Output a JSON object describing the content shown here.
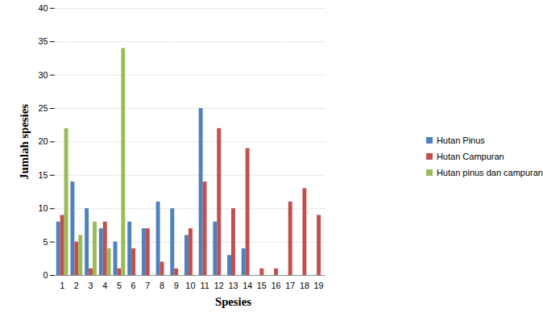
{
  "chart_data": {
    "type": "bar",
    "xlabel": "Spesies",
    "ylabel": "Jumlah spesies",
    "categories": [
      "1",
      "2",
      "3",
      "4",
      "5",
      "6",
      "7",
      "8",
      "9",
      "10",
      "11",
      "12",
      "13",
      "14",
      "15",
      "16",
      "17",
      "18",
      "19",
      null,
      null,
      null,
      null,
      null,
      null
    ],
    "series": [
      {
        "name": "Hutan Pinus",
        "color": "#4f81bd",
        "values": [
          8,
          14,
          10,
          7,
          5,
          8,
          7,
          11,
          10,
          6,
          25,
          8,
          3,
          4,
          null,
          null,
          null,
          null,
          null,
          null,
          null,
          null,
          null,
          null,
          null
        ]
      },
      {
        "name": "Hutan Campuran",
        "color": "#c0504d",
        "values": [
          9,
          5,
          1,
          8,
          1,
          4,
          7,
          2,
          1,
          7,
          14,
          22,
          10,
          19,
          1,
          1,
          11,
          13,
          9,
          null,
          null,
          null,
          null,
          null,
          null
        ]
      },
      {
        "name": "Hutan pinus dan campuran",
        "color": "#9bbb59",
        "values": [
          22,
          6,
          8,
          4,
          34,
          null,
          null,
          null,
          null,
          null,
          null,
          null,
          null,
          null,
          null,
          null,
          null,
          null,
          null,
          null,
          null,
          null,
          null,
          null,
          null
        ]
      }
    ],
    "ylim": [
      0,
      40
    ],
    "yticks": [
      0,
      5,
      10,
      15,
      20,
      25,
      30,
      35,
      40
    ],
    "grid": true,
    "legend": "right"
  }
}
